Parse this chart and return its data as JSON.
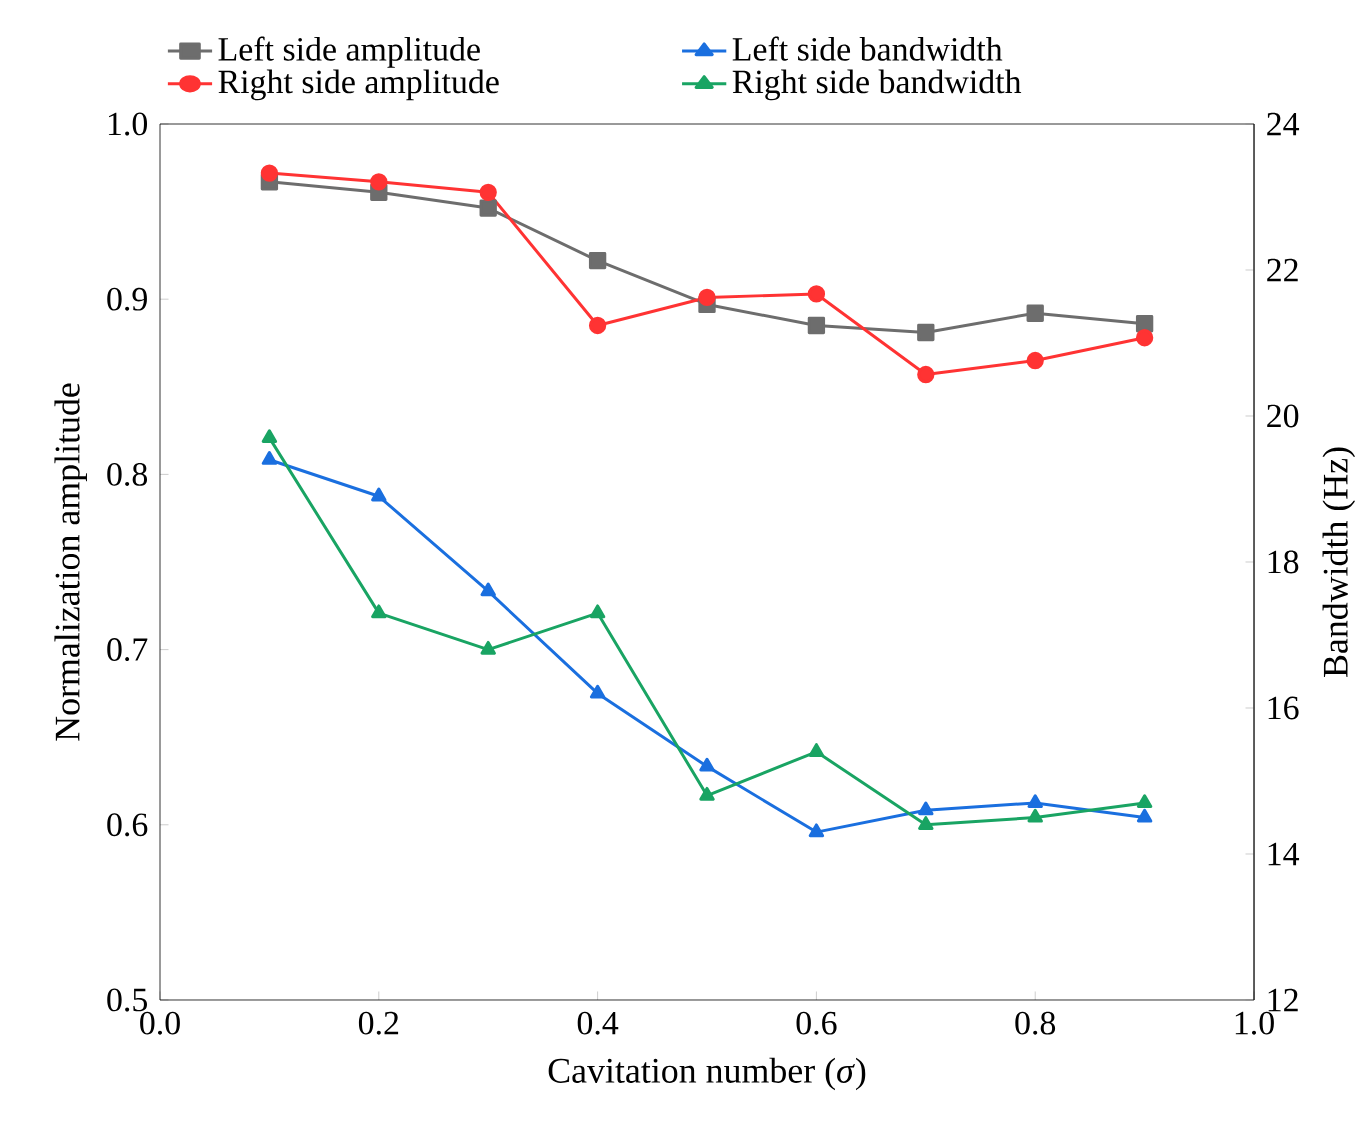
{
  "chart_data": {
    "type": "line",
    "xlabel": "Cavitation number (*σ*)",
    "ylabel": "Normalization amplitude",
    "y2label": "Bandwidth (Hz)",
    "x": [
      0.1,
      0.2,
      0.3,
      0.4,
      0.5,
      0.6,
      0.7,
      0.8,
      0.9
    ],
    "series": [
      {
        "name": "Left side amplitude",
        "color": "#6d6d6d",
        "marker": "square",
        "values": [
          0.967,
          0.961,
          0.952,
          0.922,
          0.897,
          0.885,
          0.881,
          0.892,
          0.886
        ]
      },
      {
        "name": "Right side amplitude",
        "color": "#ff3333",
        "marker": "circle",
        "values": [
          0.972,
          0.967,
          0.961,
          0.885,
          0.901,
          0.903,
          0.857,
          0.865,
          0.878
        ]
      },
      {
        "name": "Left side bandwidth",
        "color": "#1a6fdf",
        "marker": "triangle",
        "axis": "y2",
        "values": [
          19.4,
          18.9,
          17.6,
          16.2,
          15.2,
          14.3,
          14.6,
          14.7,
          14.5
        ]
      },
      {
        "name": "Right side bandwidth",
        "color": "#19a463",
        "marker": "triangle",
        "axis": "y2",
        "values": [
          19.7,
          17.3,
          16.8,
          17.3,
          14.8,
          15.4,
          14.4,
          14.5,
          14.7
        ]
      }
    ],
    "xlim": [
      0,
      1
    ],
    "xticks": [
      {
        "value": 0,
        "label": "0.0"
      },
      {
        "value": 0.2,
        "label": "0.2"
      },
      {
        "value": 0.4,
        "label": "0.4"
      },
      {
        "value": 0.6,
        "label": "0.6"
      },
      {
        "value": 0.8,
        "label": "0.8"
      },
      {
        "value": 1,
        "label": "1.0"
      }
    ],
    "ylim": [
      0.5,
      1
    ],
    "yticks": [
      {
        "value": 0.5,
        "label": "0.5"
      },
      {
        "value": 0.6,
        "label": "0.6"
      },
      {
        "value": 0.7,
        "label": "0.7"
      },
      {
        "value": 0.8,
        "label": "0.8"
      },
      {
        "value": 0.9,
        "label": "0.9"
      },
      {
        "value": 1,
        "label": "1.0"
      }
    ],
    "y2lim": [
      12,
      24
    ],
    "y2ticks": [
      12,
      14,
      16,
      18,
      20,
      22,
      24
    ],
    "legend": "top",
    "line_style": "solid"
  }
}
